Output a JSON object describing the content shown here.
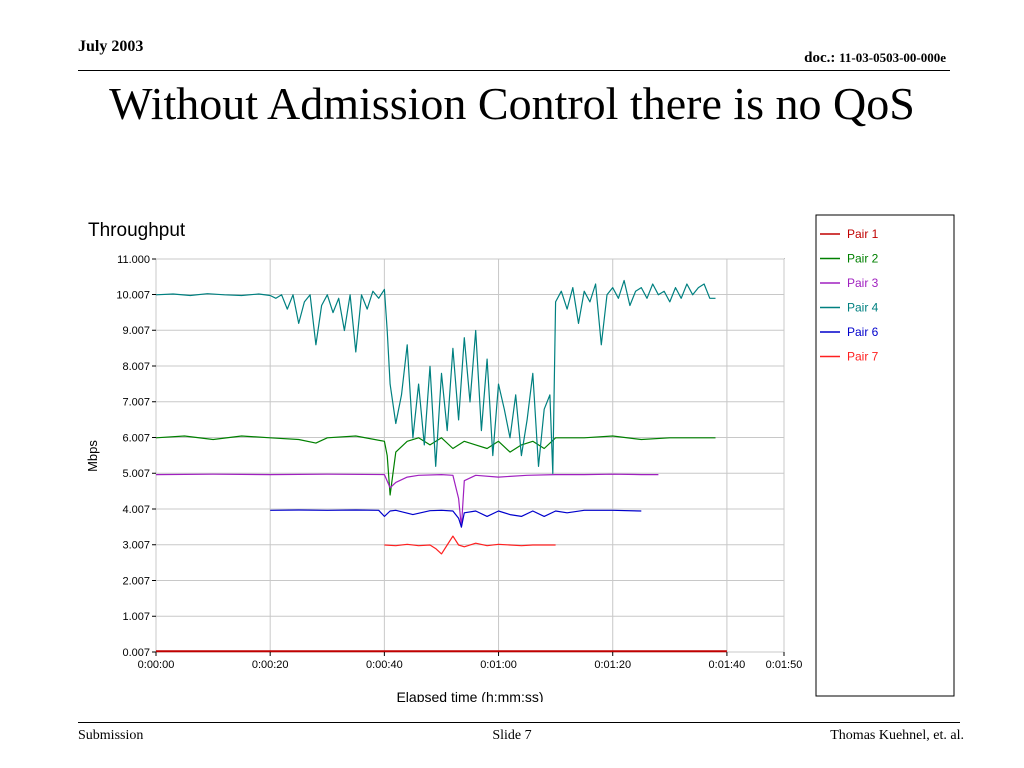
{
  "header": {
    "date": "July 2003",
    "doc_label": "doc.:",
    "doc_number": "11-03-0503-00-000e"
  },
  "slide": {
    "title": "Without Admission Control there is no QoS"
  },
  "footer": {
    "left": "Submission",
    "center": "Slide 7",
    "right": "Thomas Kuehnel, et. al."
  },
  "chart_data": {
    "type": "line",
    "title": "Throughput",
    "xlabel": "Elapsed time (h:mm:ss)",
    "ylabel": "Mbps",
    "x_unit": "seconds",
    "xlim": [
      0,
      110
    ],
    "ylim": [
      0.007,
      11.0
    ],
    "x_ticks": [
      {
        "value": 0,
        "label": "0:00:00"
      },
      {
        "value": 20,
        "label": "0:00:20"
      },
      {
        "value": 40,
        "label": "0:00:40"
      },
      {
        "value": 60,
        "label": "0:01:00"
      },
      {
        "value": 80,
        "label": "0:01:20"
      },
      {
        "value": 100,
        "label": "0:01:40"
      },
      {
        "value": 110,
        "label": "0:01:50"
      }
    ],
    "y_ticks": [
      {
        "value": 0.007,
        "label": "0.007"
      },
      {
        "value": 1.007,
        "label": "1.007"
      },
      {
        "value": 2.007,
        "label": "2.007"
      },
      {
        "value": 3.007,
        "label": "3.007"
      },
      {
        "value": 4.007,
        "label": "4.007"
      },
      {
        "value": 5.007,
        "label": "5.007"
      },
      {
        "value": 6.007,
        "label": "6.007"
      },
      {
        "value": 7.007,
        "label": "7.007"
      },
      {
        "value": 8.007,
        "label": "8.007"
      },
      {
        "value": 9.007,
        "label": "9.007"
      },
      {
        "value": 10.007,
        "label": "10.007"
      },
      {
        "value": 11.0,
        "label": "11.000"
      }
    ],
    "grid": true,
    "legend_position": "right",
    "series": [
      {
        "name": "Pair 1",
        "color": "#c00000",
        "x": [
          0,
          20,
          40,
          60,
          80,
          100
        ],
        "y": [
          0.03,
          0.03,
          0.03,
          0.03,
          0.03,
          0.03
        ]
      },
      {
        "name": "Pair 2",
        "color": "#008000",
        "x": [
          0,
          5,
          10,
          15,
          20,
          25,
          28,
          30,
          35,
          40,
          40.5,
          41,
          42,
          44,
          46,
          48,
          50,
          52,
          54,
          56,
          58,
          60,
          62,
          64,
          66,
          68,
          70,
          75,
          80,
          85,
          90,
          95,
          98
        ],
        "y": [
          6.0,
          6.05,
          5.95,
          6.05,
          6.0,
          5.95,
          5.85,
          6.0,
          6.05,
          5.9,
          5.5,
          4.4,
          5.6,
          5.9,
          6.0,
          5.8,
          6.0,
          5.7,
          5.9,
          5.8,
          5.7,
          5.9,
          5.6,
          5.8,
          5.9,
          5.7,
          6.0,
          6.0,
          6.05,
          5.95,
          6.0,
          6.0,
          6.0
        ]
      },
      {
        "name": "Pair 3",
        "color": "#a020c0",
        "x": [
          0,
          10,
          20,
          30,
          40,
          41,
          42,
          44,
          46,
          50,
          52,
          53,
          53.5,
          54,
          56,
          60,
          65,
          70,
          75,
          80,
          85,
          88
        ],
        "y": [
          4.97,
          4.98,
          4.97,
          4.98,
          4.97,
          4.6,
          4.75,
          4.9,
          4.95,
          4.97,
          4.95,
          4.3,
          3.5,
          4.8,
          4.95,
          4.9,
          4.95,
          4.97,
          4.97,
          4.98,
          4.97,
          4.97
        ]
      },
      {
        "name": "Pair 4",
        "color": "#008080",
        "x": [
          0,
          3,
          6,
          9,
          12,
          15,
          18,
          20,
          21,
          22,
          23,
          24,
          25,
          26,
          27,
          28,
          29,
          30,
          31,
          32,
          33,
          34,
          35,
          36,
          37,
          38,
          39,
          40,
          40.5,
          41,
          42,
          43,
          44,
          45,
          46,
          47,
          48,
          49,
          50,
          51,
          52,
          53,
          54,
          55,
          56,
          57,
          58,
          59,
          60,
          61,
          62,
          63,
          64,
          65,
          66,
          67,
          68,
          69,
          69.5,
          70,
          71,
          72,
          73,
          74,
          75,
          76,
          77,
          78,
          79,
          80,
          81,
          82,
          83,
          84,
          85,
          86,
          87,
          88,
          89,
          90,
          91,
          92,
          93,
          94,
          95,
          96,
          97,
          98
        ],
        "y": [
          10.0,
          10.02,
          9.98,
          10.03,
          10.0,
          9.98,
          10.02,
          9.98,
          9.9,
          10.0,
          9.6,
          10.0,
          9.2,
          9.8,
          10.0,
          8.6,
          9.7,
          10.0,
          9.5,
          9.9,
          9.0,
          10.0,
          8.4,
          10.0,
          9.6,
          10.1,
          9.9,
          10.15,
          9.0,
          7.5,
          6.4,
          7.2,
          8.6,
          6.0,
          7.5,
          5.8,
          8.0,
          5.2,
          7.8,
          6.2,
          8.5,
          6.5,
          8.8,
          7.0,
          9.0,
          6.2,
          8.2,
          5.5,
          7.5,
          6.8,
          6.0,
          7.2,
          5.5,
          6.5,
          7.8,
          5.2,
          6.8,
          7.2,
          5.0,
          9.8,
          10.1,
          9.6,
          10.2,
          9.2,
          10.1,
          9.8,
          10.3,
          8.6,
          10.0,
          10.2,
          9.9,
          10.4,
          9.7,
          10.1,
          10.2,
          9.9,
          10.3,
          10.0,
          10.1,
          9.8,
          10.2,
          9.9,
          10.3,
          10.0,
          10.2,
          10.3,
          9.9,
          9.9
        ]
      },
      {
        "name": "Pair 6",
        "color": "#0000cc",
        "x": [
          20,
          25,
          30,
          35,
          39,
          40,
          41,
          42,
          45,
          48,
          50,
          52,
          53,
          53.5,
          54,
          56,
          58,
          60,
          62,
          64,
          66,
          68,
          70,
          72,
          75,
          80,
          85
        ],
        "y": [
          3.97,
          3.98,
          3.97,
          3.98,
          3.97,
          3.8,
          3.95,
          3.97,
          3.85,
          3.96,
          3.97,
          3.95,
          3.75,
          3.5,
          3.9,
          3.95,
          3.8,
          3.95,
          3.85,
          3.8,
          3.95,
          3.8,
          3.95,
          3.9,
          3.97,
          3.97,
          3.95
        ]
      },
      {
        "name": "Pair 7",
        "color": "#ff2020",
        "x": [
          40,
          42,
          44,
          46,
          48,
          49,
          50,
          51,
          52,
          53,
          54,
          56,
          58,
          60,
          62,
          64,
          66,
          68,
          70
        ],
        "y": [
          3.0,
          2.98,
          3.02,
          2.98,
          3.0,
          2.9,
          2.75,
          3.0,
          3.25,
          3.0,
          2.95,
          3.05,
          2.98,
          3.02,
          3.0,
          2.98,
          3.0,
          3.0,
          3.0
        ]
      }
    ]
  }
}
